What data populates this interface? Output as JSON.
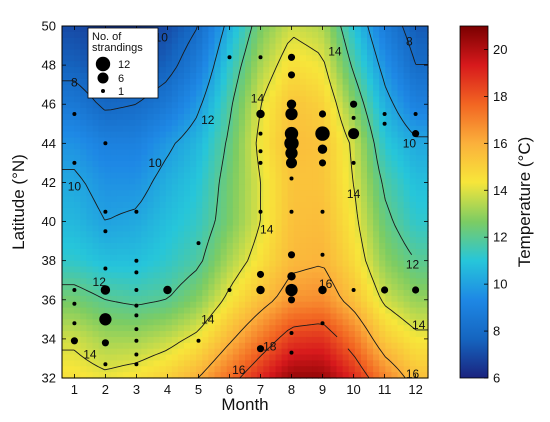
{
  "chart_data": {
    "type": "heatmap",
    "xlabel": "Month",
    "ylabel": "Latitude (°N)",
    "xlim": [
      0.6,
      12.4
    ],
    "ylim": [
      32,
      50
    ],
    "x_ticks": [
      "1",
      "2",
      "3",
      "4",
      "5",
      "6",
      "7",
      "8",
      "9",
      "10",
      "11",
      "12"
    ],
    "y_ticks": [
      "32",
      "34",
      "36",
      "38",
      "40",
      "42",
      "44",
      "46",
      "48",
      "50"
    ],
    "colorbar": {
      "label": "Temperature (°C)",
      "range": [
        6,
        21
      ],
      "ticks": [
        "6",
        "8",
        "10",
        "12",
        "14",
        "16",
        "18",
        "20"
      ],
      "colormap": [
        "#1a237e",
        "#1565c0",
        "#1e88e5",
        "#26c6da",
        "#7ccc63",
        "#f7e63a",
        "#fbb03b",
        "#f26522",
        "#d7191c",
        "#7a0000"
      ]
    },
    "temperature_grid": {
      "lat": [
        32,
        34,
        36,
        38,
        40,
        42,
        44,
        46,
        48,
        50
      ],
      "months": [
        1,
        2,
        3,
        4,
        5,
        6,
        7,
        8,
        9,
        10,
        11,
        12
      ],
      "values": [
        [
          14.5,
          14.2,
          14.5,
          15,
          16,
          17.5,
          19,
          20.5,
          20.5,
          19,
          17,
          15.5
        ],
        [
          13.8,
          13.2,
          13.2,
          13.6,
          14.3,
          15.8,
          17.2,
          18.6,
          18.8,
          17.3,
          15.2,
          14.3
        ],
        [
          12.5,
          12.0,
          11.8,
          12.0,
          12.8,
          14.3,
          15.5,
          16.6,
          16.8,
          15.5,
          13.8,
          13.0
        ],
        [
          11.2,
          10.8,
          10.8,
          11.2,
          11.8,
          13.3,
          14.5,
          15.7,
          15.9,
          14.7,
          12.9,
          12.0
        ],
        [
          10.6,
          10.0,
          10.2,
          10.8,
          11.3,
          12.6,
          14.0,
          15.5,
          15.6,
          14.3,
          12.3,
          11.2
        ],
        [
          10.2,
          9.6,
          9.6,
          10.4,
          11.0,
          12.5,
          14.0,
          15.4,
          15.4,
          14.0,
          11.8,
          10.8
        ],
        [
          9.6,
          9.0,
          9.0,
          9.8,
          10.6,
          12.2,
          14.3,
          15.6,
          15.4,
          13.8,
          11.1,
          10.2
        ],
        [
          8.6,
          7.8,
          8.0,
          8.6,
          9.8,
          11.8,
          14.0,
          15.4,
          15.0,
          12.8,
          10.4,
          9.0
        ],
        [
          7.6,
          7.0,
          7.0,
          7.6,
          8.8,
          11.2,
          13.3,
          14.6,
          14.2,
          11.8,
          9.6,
          8.0
        ],
        [
          7.0,
          6.6,
          6.6,
          7.0,
          8.0,
          10.4,
          12.6,
          13.8,
          13.4,
          11.0,
          8.8,
          7.4
        ]
      ]
    },
    "contour_levels": [
      8,
      10,
      12,
      14,
      16,
      18
    ],
    "contour_labels": [
      {
        "text": "8",
        "month": 2.4,
        "lat": 49.5
      },
      {
        "text": "8",
        "month": 11.8,
        "lat": 49.2
      },
      {
        "text": "8",
        "month": 1.0,
        "lat": 47.1
      },
      {
        "text": "10",
        "month": 3.8,
        "lat": 49.4
      },
      {
        "text": "10",
        "month": 1.0,
        "lat": 41.8
      },
      {
        "text": "10",
        "month": 3.6,
        "lat": 43.0
      },
      {
        "text": "10",
        "month": 11.8,
        "lat": 44.0
      },
      {
        "text": "12",
        "month": 5.3,
        "lat": 45.2
      },
      {
        "text": "12",
        "month": 1.8,
        "lat": 36.9
      },
      {
        "text": "12",
        "month": 11.9,
        "lat": 37.8
      },
      {
        "text": "14",
        "month": 6.9,
        "lat": 46.3
      },
      {
        "text": "14",
        "month": 9.4,
        "lat": 48.7
      },
      {
        "text": "14",
        "month": 7.2,
        "lat": 39.6
      },
      {
        "text": "14",
        "month": 10.0,
        "lat": 41.4
      },
      {
        "text": "14",
        "month": 1.5,
        "lat": 33.2
      },
      {
        "text": "14",
        "month": 5.3,
        "lat": 35.0
      },
      {
        "text": "14",
        "month": 12.1,
        "lat": 34.7
      },
      {
        "text": "16",
        "month": 9.1,
        "lat": 36.8
      },
      {
        "text": "16",
        "month": 6.3,
        "lat": 32.4
      },
      {
        "text": "16",
        "month": 11.9,
        "lat": 32.2
      },
      {
        "text": "18",
        "month": 7.3,
        "lat": 33.6
      }
    ],
    "legend": {
      "title_lines": [
        "No. of",
        "strandings"
      ],
      "entries": [
        {
          "label": "12",
          "count": 12
        },
        {
          "label": "6",
          "count": 6
        },
        {
          "label": "1",
          "count": 1
        }
      ],
      "placement": "top-left"
    },
    "strandings": [
      {
        "month": 1,
        "lat": 45.5,
        "count": 1
      },
      {
        "month": 1,
        "lat": 43,
        "count": 1
      },
      {
        "month": 1,
        "lat": 36.5,
        "count": 1
      },
      {
        "month": 1,
        "lat": 35.8,
        "count": 1
      },
      {
        "month": 1,
        "lat": 34.8,
        "count": 1
      },
      {
        "month": 1,
        "lat": 33.9,
        "count": 2
      },
      {
        "month": 2,
        "lat": 44,
        "count": 1
      },
      {
        "month": 2,
        "lat": 40.5,
        "count": 1
      },
      {
        "month": 2,
        "lat": 39.5,
        "count": 1
      },
      {
        "month": 2,
        "lat": 37.6,
        "count": 1
      },
      {
        "month": 2,
        "lat": 36.5,
        "count": 4
      },
      {
        "month": 2,
        "lat": 35,
        "count": 8
      },
      {
        "month": 2,
        "lat": 33.8,
        "count": 2
      },
      {
        "month": 2,
        "lat": 32.7,
        "count": 1
      },
      {
        "month": 3,
        "lat": 40.5,
        "count": 1
      },
      {
        "month": 3,
        "lat": 38,
        "count": 1
      },
      {
        "month": 3,
        "lat": 37.4,
        "count": 1
      },
      {
        "month": 3,
        "lat": 36.5,
        "count": 1
      },
      {
        "month": 3,
        "lat": 35.7,
        "count": 1
      },
      {
        "month": 3,
        "lat": 35.2,
        "count": 1
      },
      {
        "month": 3,
        "lat": 34.5,
        "count": 1
      },
      {
        "month": 3,
        "lat": 33.9,
        "count": 1
      },
      {
        "month": 3,
        "lat": 33.2,
        "count": 1
      },
      {
        "month": 3,
        "lat": 32.7,
        "count": 1
      },
      {
        "month": 4,
        "lat": 36.5,
        "count": 3
      },
      {
        "month": 5,
        "lat": 38.9,
        "count": 1
      },
      {
        "month": 5,
        "lat": 33.9,
        "count": 1
      },
      {
        "month": 6,
        "lat": 48.4,
        "count": 1
      },
      {
        "month": 6,
        "lat": 36.5,
        "count": 1
      },
      {
        "month": 7,
        "lat": 48.4,
        "count": 1
      },
      {
        "month": 7,
        "lat": 45.5,
        "count": 3
      },
      {
        "month": 7,
        "lat": 44.5,
        "count": 1
      },
      {
        "month": 7,
        "lat": 43.6,
        "count": 1
      },
      {
        "month": 7,
        "lat": 43,
        "count": 1
      },
      {
        "month": 7,
        "lat": 40.5,
        "count": 1
      },
      {
        "month": 7,
        "lat": 37.3,
        "count": 2
      },
      {
        "month": 7,
        "lat": 36.5,
        "count": 3
      },
      {
        "month": 7,
        "lat": 33.5,
        "count": 2
      },
      {
        "month": 8,
        "lat": 48.4,
        "count": 2
      },
      {
        "month": 8,
        "lat": 47.5,
        "count": 2
      },
      {
        "month": 8,
        "lat": 46,
        "count": 4
      },
      {
        "month": 8,
        "lat": 45.5,
        "count": 8
      },
      {
        "month": 8,
        "lat": 44.5,
        "count": 10
      },
      {
        "month": 8,
        "lat": 44,
        "count": 12
      },
      {
        "month": 8,
        "lat": 43.5,
        "count": 8
      },
      {
        "month": 8,
        "lat": 43,
        "count": 6
      },
      {
        "month": 8,
        "lat": 42.2,
        "count": 1
      },
      {
        "month": 8,
        "lat": 40.5,
        "count": 1
      },
      {
        "month": 8,
        "lat": 38.3,
        "count": 2
      },
      {
        "month": 8,
        "lat": 37.2,
        "count": 3
      },
      {
        "month": 8,
        "lat": 36.5,
        "count": 8
      },
      {
        "month": 8,
        "lat": 36,
        "count": 2
      },
      {
        "month": 8,
        "lat": 34.3,
        "count": 1
      },
      {
        "month": 8,
        "lat": 33.3,
        "count": 1
      },
      {
        "month": 9,
        "lat": 45.5,
        "count": 2
      },
      {
        "month": 9,
        "lat": 44.5,
        "count": 12
      },
      {
        "month": 9,
        "lat": 43.7,
        "count": 4
      },
      {
        "month": 9,
        "lat": 43,
        "count": 2
      },
      {
        "month": 9,
        "lat": 40.5,
        "count": 1
      },
      {
        "month": 9,
        "lat": 38.3,
        "count": 1
      },
      {
        "month": 9,
        "lat": 36.5,
        "count": 3
      },
      {
        "month": 9,
        "lat": 34.8,
        "count": 1
      },
      {
        "month": 10,
        "lat": 46,
        "count": 2
      },
      {
        "month": 10,
        "lat": 45.3,
        "count": 1
      },
      {
        "month": 10,
        "lat": 44.5,
        "count": 6
      },
      {
        "month": 10,
        "lat": 43,
        "count": 1
      },
      {
        "month": 10,
        "lat": 36.5,
        "count": 1
      },
      {
        "month": 11,
        "lat": 45.5,
        "count": 1
      },
      {
        "month": 11,
        "lat": 45,
        "count": 1
      },
      {
        "month": 11,
        "lat": 36.5,
        "count": 2
      },
      {
        "month": 12,
        "lat": 45.5,
        "count": 1
      },
      {
        "month": 12,
        "lat": 44.5,
        "count": 2
      },
      {
        "month": 12,
        "lat": 36.5,
        "count": 2
      }
    ]
  }
}
